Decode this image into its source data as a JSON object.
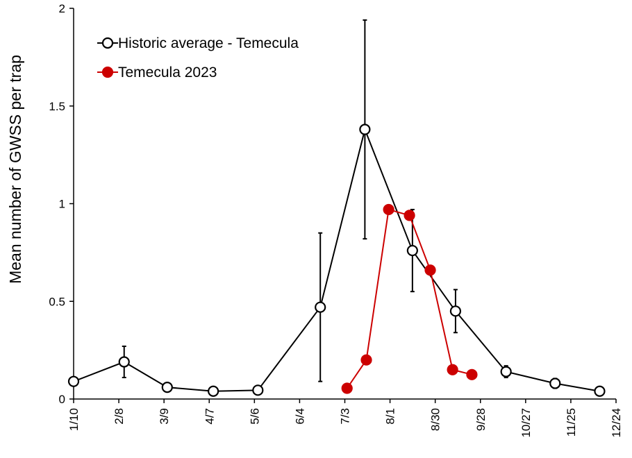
{
  "chart_data": {
    "type": "line",
    "title": "",
    "xlabel": "",
    "ylabel": "Mean number of GWSS per trap",
    "ylim": [
      0,
      2
    ],
    "y_ticks": [
      "0",
      "0.5",
      "1",
      "1.5",
      "2"
    ],
    "x_ticks": [
      "1/10",
      "2/8",
      "3/9",
      "4/7",
      "5/6",
      "6/4",
      "7/3",
      "8/1",
      "8/30",
      "9/28",
      "10/27",
      "11/25",
      "12/24"
    ],
    "x_day_range": [
      1,
      366
    ],
    "legend_position": "top-left",
    "grid": false,
    "series": [
      {
        "name": "Historic average - Temecula",
        "color": "#000000",
        "marker": "open-circle",
        "points": [
          {
            "x": 1,
            "y": 0.09,
            "err": null
          },
          {
            "x": 35,
            "y": 0.19,
            "err": 0.08
          },
          {
            "x": 64,
            "y": 0.06,
            "err": null
          },
          {
            "x": 95,
            "y": 0.04,
            "err": null
          },
          {
            "x": 125,
            "y": 0.045,
            "err": null
          },
          {
            "x": 167,
            "y": 0.47,
            "err": 0.38
          },
          {
            "x": 197,
            "y": 1.38,
            "err": 0.56
          },
          {
            "x": 229,
            "y": 0.76,
            "err": 0.21
          },
          {
            "x": 258,
            "y": 0.45,
            "err": 0.11
          },
          {
            "x": 292,
            "y": 0.14,
            "err": 0.03
          },
          {
            "x": 325,
            "y": 0.08,
            "err": 0.025
          },
          {
            "x": 355,
            "y": 0.04,
            "err": null
          }
        ]
      },
      {
        "name": "Temecula 2023",
        "color": "#cc0000",
        "marker": "filled-circle",
        "points": [
          {
            "x": 185,
            "y": 0.055
          },
          {
            "x": 198,
            "y": 0.2
          },
          {
            "x": 213,
            "y": 0.97
          },
          {
            "x": 227,
            "y": 0.94
          },
          {
            "x": 241,
            "y": 0.66
          },
          {
            "x": 256,
            "y": 0.15
          },
          {
            "x": 269,
            "y": 0.125
          }
        ]
      }
    ]
  }
}
